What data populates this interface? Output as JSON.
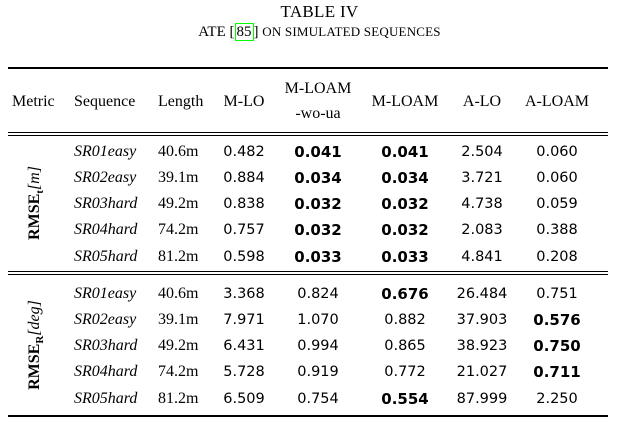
{
  "caption": {
    "title": "TABLE IV",
    "prefix": "ATE [",
    "cite": "85",
    "suffix": "] ",
    "rest": "ON SIMULATED SEQUENCES"
  },
  "header": {
    "metric": "Metric",
    "sequence": "Sequence",
    "length": "Length",
    "mlo": "M-LO",
    "mloam_wo_line1": "M-LOAM",
    "mloam_wo_line2": "-wo-ua",
    "mloam": "M-LOAM",
    "alo": "A-LO",
    "aloam": "A-LOAM"
  },
  "groups": [
    {
      "label_main": "RMSE",
      "label_sub": "t",
      "label_unit": "[m]",
      "rows": [
        {
          "sequence": "SR01easy",
          "length": "40.6m",
          "mlo": "0.482",
          "mloam_wo": "0.041",
          "mloam": "0.041",
          "alo": "2.504",
          "aloam": "0.060"
        },
        {
          "sequence": "SR02easy",
          "length": "39.1m",
          "mlo": "0.884",
          "mloam_wo": "0.034",
          "mloam": "0.034",
          "alo": "3.721",
          "aloam": "0.060"
        },
        {
          "sequence": "SR03hard",
          "length": "49.2m",
          "mlo": "0.838",
          "mloam_wo": "0.032",
          "mloam": "0.032",
          "alo": "4.738",
          "aloam": "0.059"
        },
        {
          "sequence": "SR04hard",
          "length": "74.2m",
          "mlo": "0.757",
          "mloam_wo": "0.032",
          "mloam": "0.032",
          "alo": "2.083",
          "aloam": "0.388"
        },
        {
          "sequence": "SR05hard",
          "length": "81.2m",
          "mlo": "0.598",
          "mloam_wo": "0.033",
          "mloam": "0.033",
          "alo": "4.841",
          "aloam": "0.208"
        }
      ]
    },
    {
      "label_main": "RMSE",
      "label_sub": "R",
      "label_unit": "[deg]",
      "rows": [
        {
          "sequence": "SR01easy",
          "length": "40.6m",
          "mlo": "3.368",
          "mloam_wo": "0.824",
          "mloam": "0.676",
          "alo": "26.484",
          "aloam": "0.751"
        },
        {
          "sequence": "SR02easy",
          "length": "39.1m",
          "mlo": "7.971",
          "mloam_wo": "1.070",
          "mloam": "0.882",
          "alo": "37.903",
          "aloam": "0.576"
        },
        {
          "sequence": "SR03hard",
          "length": "49.2m",
          "mlo": "6.431",
          "mloam_wo": "0.994",
          "mloam": "0.865",
          "alo": "38.923",
          "aloam": "0.750"
        },
        {
          "sequence": "SR04hard",
          "length": "74.2m",
          "mlo": "5.728",
          "mloam_wo": "0.919",
          "mloam": "0.772",
          "alo": "21.027",
          "aloam": "0.711"
        },
        {
          "sequence": "SR05hard",
          "length": "81.2m",
          "mlo": "6.509",
          "mloam_wo": "0.754",
          "mloam": "0.554",
          "alo": "87.999",
          "aloam": "2.250"
        }
      ]
    }
  ],
  "bold_cells": [
    [
      "0.mloam_wo",
      "0.mloam"
    ],
    [
      "1.mloam_wo",
      "1.mloam"
    ],
    [
      "2.mloam_wo",
      "2.mloam"
    ],
    [
      "3.mloam_wo",
      "3.mloam"
    ],
    [
      "4.mloam_wo",
      "4.mloam"
    ],
    [
      "5.mloam"
    ],
    [
      "6.aloam"
    ],
    [
      "7.aloam"
    ],
    [
      "8.aloam"
    ],
    [
      "9.mloam"
    ]
  ]
}
